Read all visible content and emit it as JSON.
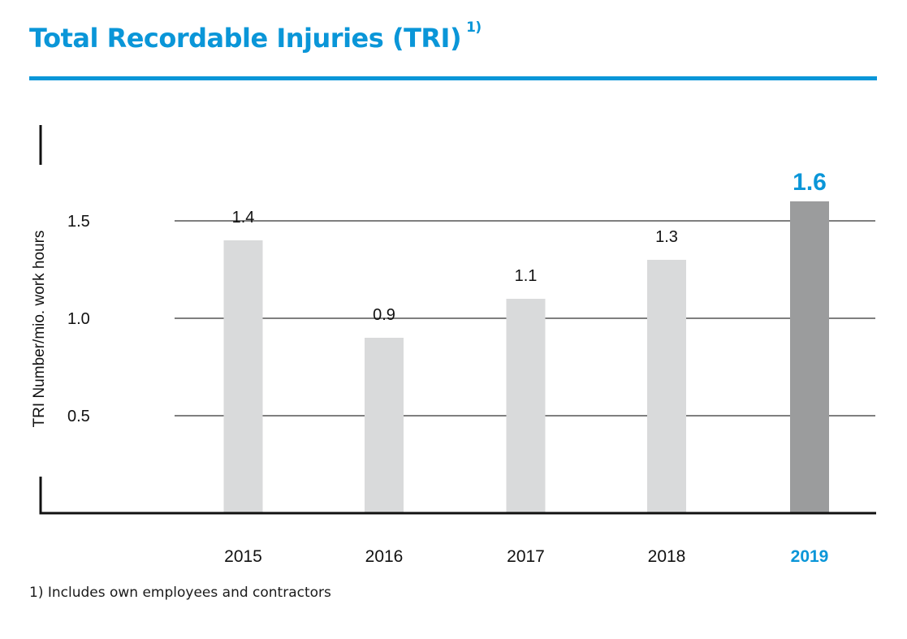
{
  "header": {
    "title": "Total Recordable Injuries (TRI)",
    "title_footnote_marker": "1)"
  },
  "footnote": "1) Includes own employees and contractors",
  "colors": {
    "brand_blue": "#0a96d8",
    "bar_default": "#d9dadb",
    "bar_highlight": "#9b9c9d",
    "axis": "#111111",
    "grid": "#555555",
    "text": "#111111"
  },
  "chart_data": {
    "type": "bar",
    "title": "Total Recordable Injuries (TRI) 1)",
    "xlabel": "",
    "ylabel": "TRI Number/mio. work hours",
    "categories": [
      "2015",
      "2016",
      "2017",
      "2018",
      "2019"
    ],
    "values": [
      1.4,
      0.9,
      1.1,
      1.3,
      1.6
    ],
    "value_labels": [
      "1.4",
      "0.9",
      "1.1",
      "1.3",
      "1.6"
    ],
    "highlight_category": "2019",
    "ylim": [
      0,
      1.6
    ],
    "yticks": [
      0.5,
      1.0,
      1.5
    ],
    "ytick_labels": [
      "0.5",
      "1.0",
      "1.5"
    ],
    "grid": true,
    "legend": "none"
  }
}
